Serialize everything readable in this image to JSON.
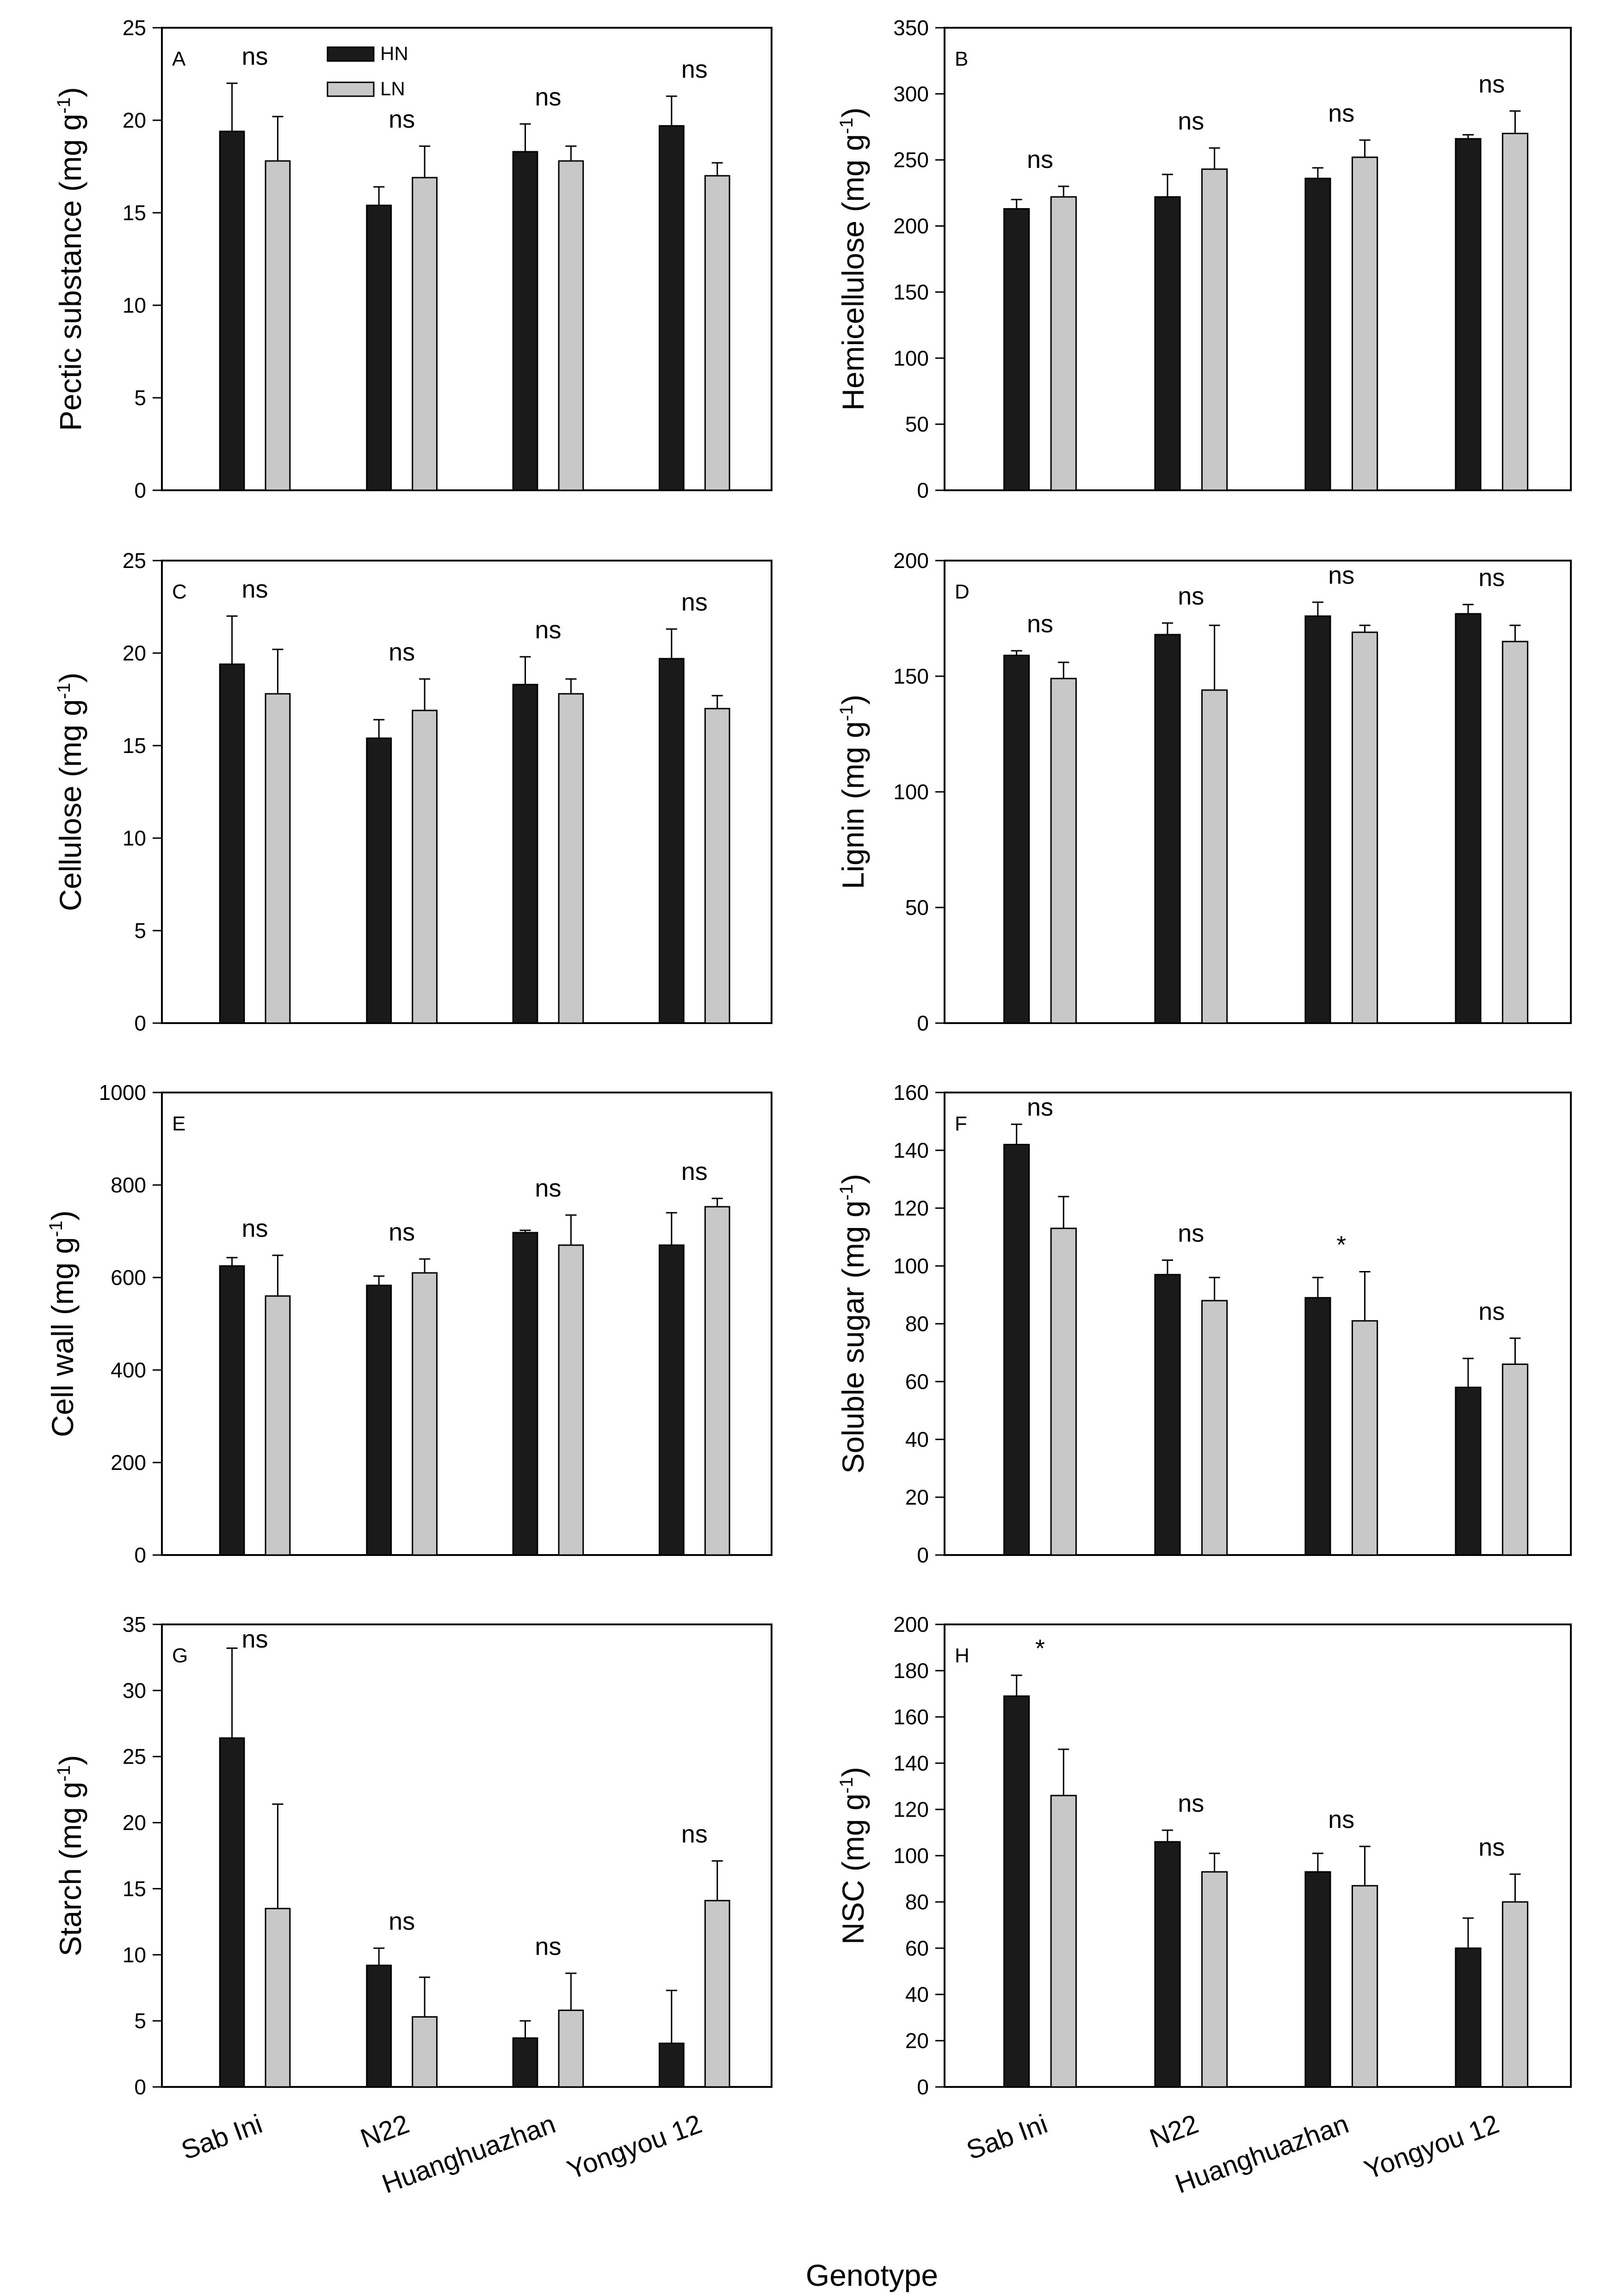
{
  "figure_title": "Genotype",
  "legend": {
    "entries": [
      {
        "label": "HN",
        "color": "#1a1a1a"
      },
      {
        "label": "LN",
        "color": "#c8c8c8"
      }
    ]
  },
  "categories": [
    "Sab Ini",
    "N22",
    "Huanghuazhan",
    "Yongyou 12"
  ],
  "colors": {
    "HN": "#1a1a1a",
    "LN": "#c8c8c8"
  },
  "chart_data": [
    {
      "panel": "A",
      "type": "bar",
      "title": "",
      "xlabel": "",
      "ylabel": "Pectic substance (mg g",
      "ylabel_sup": "-1",
      "ylabel_end": ")",
      "ylim": [
        0,
        25
      ],
      "yticks": [
        0,
        5,
        10,
        15,
        20,
        25
      ],
      "categories": [
        "Sab Ini",
        "N22",
        "Huanghuazhan",
        "Yongyou 12"
      ],
      "series": [
        {
          "name": "HN",
          "values": [
            19.4,
            15.4,
            18.3,
            19.7
          ],
          "errors": [
            2.6,
            1.0,
            1.5,
            1.6
          ]
        },
        {
          "name": "LN",
          "values": [
            17.8,
            16.9,
            17.8,
            17.0
          ],
          "errors": [
            2.4,
            1.7,
            0.8,
            0.7
          ]
        }
      ],
      "annotations": [
        "ns",
        "ns",
        "ns",
        "ns"
      ],
      "show_legend": true
    },
    {
      "panel": "B",
      "type": "bar",
      "title": "",
      "xlabel": "",
      "ylabel": "Hemicellulose (mg g",
      "ylabel_sup": "-1",
      "ylabel_end": ")",
      "ylim": [
        0,
        350
      ],
      "yticks": [
        0,
        50,
        100,
        150,
        200,
        250,
        300,
        350
      ],
      "categories": [
        "Sab Ini",
        "N22",
        "Huanghuazhan",
        "Yongyou 12"
      ],
      "series": [
        {
          "name": "HN",
          "values": [
            213,
            222,
            236,
            266
          ],
          "errors": [
            7,
            17,
            8,
            3
          ]
        },
        {
          "name": "LN",
          "values": [
            222,
            243,
            252,
            270
          ],
          "errors": [
            8,
            16,
            13,
            17
          ]
        }
      ],
      "annotations": [
        "ns",
        "ns",
        "ns",
        "ns"
      ],
      "show_legend": false
    },
    {
      "panel": "C",
      "type": "bar",
      "title": "",
      "xlabel": "",
      "ylabel": "Cellulose (mg g",
      "ylabel_sup": "-1",
      "ylabel_end": ")",
      "ylim": [
        0,
        25
      ],
      "yticks": [
        0,
        5,
        10,
        15,
        20,
        25
      ],
      "categories": [
        "Sab Ini",
        "N22",
        "Huanghuazhan",
        "Yongyou 12"
      ],
      "series": [
        {
          "name": "HN",
          "values": [
            19.4,
            15.4,
            18.3,
            19.7
          ],
          "errors": [
            2.6,
            1.0,
            1.5,
            1.6
          ]
        },
        {
          "name": "LN",
          "values": [
            17.8,
            16.9,
            17.8,
            17.0
          ],
          "errors": [
            2.4,
            1.7,
            0.8,
            0.7
          ]
        }
      ],
      "annotations": [
        "ns",
        "ns",
        "ns",
        "ns"
      ],
      "show_legend": false
    },
    {
      "panel": "D",
      "type": "bar",
      "title": "",
      "xlabel": "",
      "ylabel": "Lignin (mg g",
      "ylabel_sup": "-1",
      "ylabel_end": ")",
      "ylim": [
        0,
        200
      ],
      "yticks": [
        0,
        50,
        100,
        150,
        200
      ],
      "categories": [
        "Sab Ini",
        "N22",
        "Huanghuazhan",
        "Yongyou 12"
      ],
      "series": [
        {
          "name": "HN",
          "values": [
            159,
            168,
            176,
            177
          ],
          "errors": [
            2,
            5,
            6,
            4
          ]
        },
        {
          "name": "LN",
          "values": [
            149,
            144,
            169,
            165
          ],
          "errors": [
            7,
            28,
            3,
            7
          ]
        }
      ],
      "annotations": [
        "ns",
        "ns",
        "ns",
        "ns"
      ],
      "show_legend": false
    },
    {
      "panel": "E",
      "type": "bar",
      "title": "",
      "xlabel": "",
      "ylabel": "Cell wall (mg g",
      "ylabel_sup": "-1",
      "ylabel_end": ")",
      "ylim": [
        0,
        1000
      ],
      "yticks": [
        0,
        200,
        400,
        600,
        800,
        1000
      ],
      "categories": [
        "Sab Ini",
        "N22",
        "Huanghuazhan",
        "Yongyou 12"
      ],
      "series": [
        {
          "name": "HN",
          "values": [
            625,
            583,
            697,
            670
          ],
          "errors": [
            18,
            20,
            5,
            70
          ]
        },
        {
          "name": "LN",
          "values": [
            560,
            610,
            670,
            753
          ],
          "errors": [
            88,
            30,
            65,
            18
          ]
        }
      ],
      "annotations": [
        "ns",
        "ns",
        "ns",
        "ns"
      ],
      "show_legend": false
    },
    {
      "panel": "F",
      "type": "bar",
      "title": "",
      "xlabel": "",
      "ylabel": "Soluble sugar (mg g",
      "ylabel_sup": "-1",
      "ylabel_end": ")",
      "ylim": [
        0,
        160
      ],
      "yticks": [
        0,
        20,
        40,
        60,
        80,
        100,
        120,
        140,
        160
      ],
      "categories": [
        "Sab Ini",
        "N22",
        "Huanghuazhan",
        "Yongyou 12"
      ],
      "series": [
        {
          "name": "HN",
          "values": [
            142,
            97,
            89,
            58
          ],
          "errors": [
            7,
            5,
            7,
            10
          ]
        },
        {
          "name": "LN",
          "values": [
            113,
            88,
            81,
            66
          ],
          "errors": [
            11,
            8,
            17,
            9
          ]
        }
      ],
      "annotations": [
        "ns",
        "ns",
        "*",
        "ns"
      ],
      "show_legend": false
    },
    {
      "panel": "G",
      "type": "bar",
      "title": "",
      "xlabel": "",
      "ylabel": "Starch (mg g",
      "ylabel_sup": "-1",
      "ylabel_end": ")",
      "ylim": [
        0,
        35
      ],
      "yticks": [
        0,
        5,
        10,
        15,
        20,
        25,
        30,
        35
      ],
      "categories": [
        "Sab Ini",
        "N22",
        "Huanghuazhan",
        "Yongyou 12"
      ],
      "series": [
        {
          "name": "HN",
          "values": [
            26.4,
            9.2,
            3.7,
            3.3
          ],
          "errors": [
            6.8,
            1.3,
            1.3,
            4.0
          ]
        },
        {
          "name": "LN",
          "values": [
            13.5,
            5.3,
            5.8,
            14.1
          ],
          "errors": [
            7.9,
            3.0,
            2.8,
            3.0
          ]
        }
      ],
      "annotations": [
        "ns",
        "ns",
        "ns",
        "ns"
      ],
      "show_legend": false
    },
    {
      "panel": "H",
      "type": "bar",
      "title": "",
      "xlabel": "",
      "ylabel": "NSC (mg g",
      "ylabel_sup": "-1",
      "ylabel_end": ")",
      "ylim": [
        0,
        200
      ],
      "yticks": [
        0,
        20,
        40,
        60,
        80,
        100,
        120,
        140,
        160,
        180,
        200
      ],
      "categories": [
        "Sab Ini",
        "N22",
        "Huanghuazhan",
        "Yongyou 12"
      ],
      "series": [
        {
          "name": "HN",
          "values": [
            169,
            106,
            93,
            60
          ],
          "errors": [
            9,
            5,
            8,
            13
          ]
        },
        {
          "name": "LN",
          "values": [
            126,
            93,
            87,
            80
          ],
          "errors": [
            20,
            8,
            17,
            12
          ]
        }
      ],
      "annotations": [
        "*",
        "ns",
        "ns",
        "ns"
      ],
      "show_legend": false
    }
  ]
}
